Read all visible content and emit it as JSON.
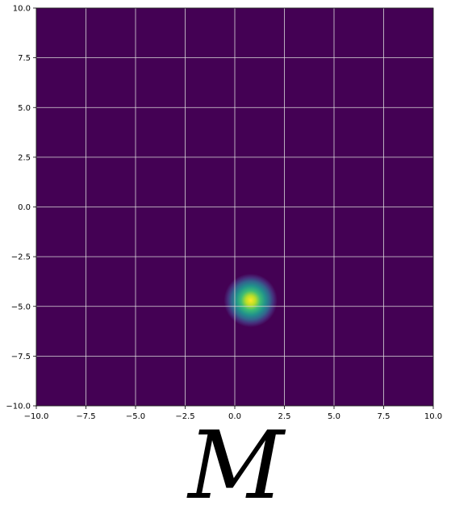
{
  "chart_data": {
    "type": "heatmap",
    "title": "",
    "xlabel": "",
    "ylabel": "",
    "xlim": [
      -10,
      10
    ],
    "ylim": [
      -10,
      10
    ],
    "x_ticks": [
      "−10.0",
      "−7.5",
      "−5.0",
      "−2.5",
      "0.0",
      "2.5",
      "5.0",
      "7.5",
      "10.0"
    ],
    "y_ticks": [
      "10.0",
      "7.5",
      "5.0",
      "2.5",
      "0.0",
      "−2.5",
      "−5.0",
      "−7.5",
      "−10.0"
    ],
    "x_tick_values": [
      -10,
      -7.5,
      -5,
      -2.5,
      0,
      2.5,
      5,
      7.5,
      10
    ],
    "y_tick_values": [
      10,
      7.5,
      5,
      2.5,
      0,
      -2.5,
      -5,
      -7.5,
      -10
    ],
    "grid": true,
    "colormap": "viridis",
    "background_color": "#440154",
    "peak_color": "#fde725",
    "grid_color": "#d9d9d9",
    "peak": {
      "x": 0.8,
      "y": -4.7,
      "sigma": 0.45
    }
  },
  "caption": "M"
}
